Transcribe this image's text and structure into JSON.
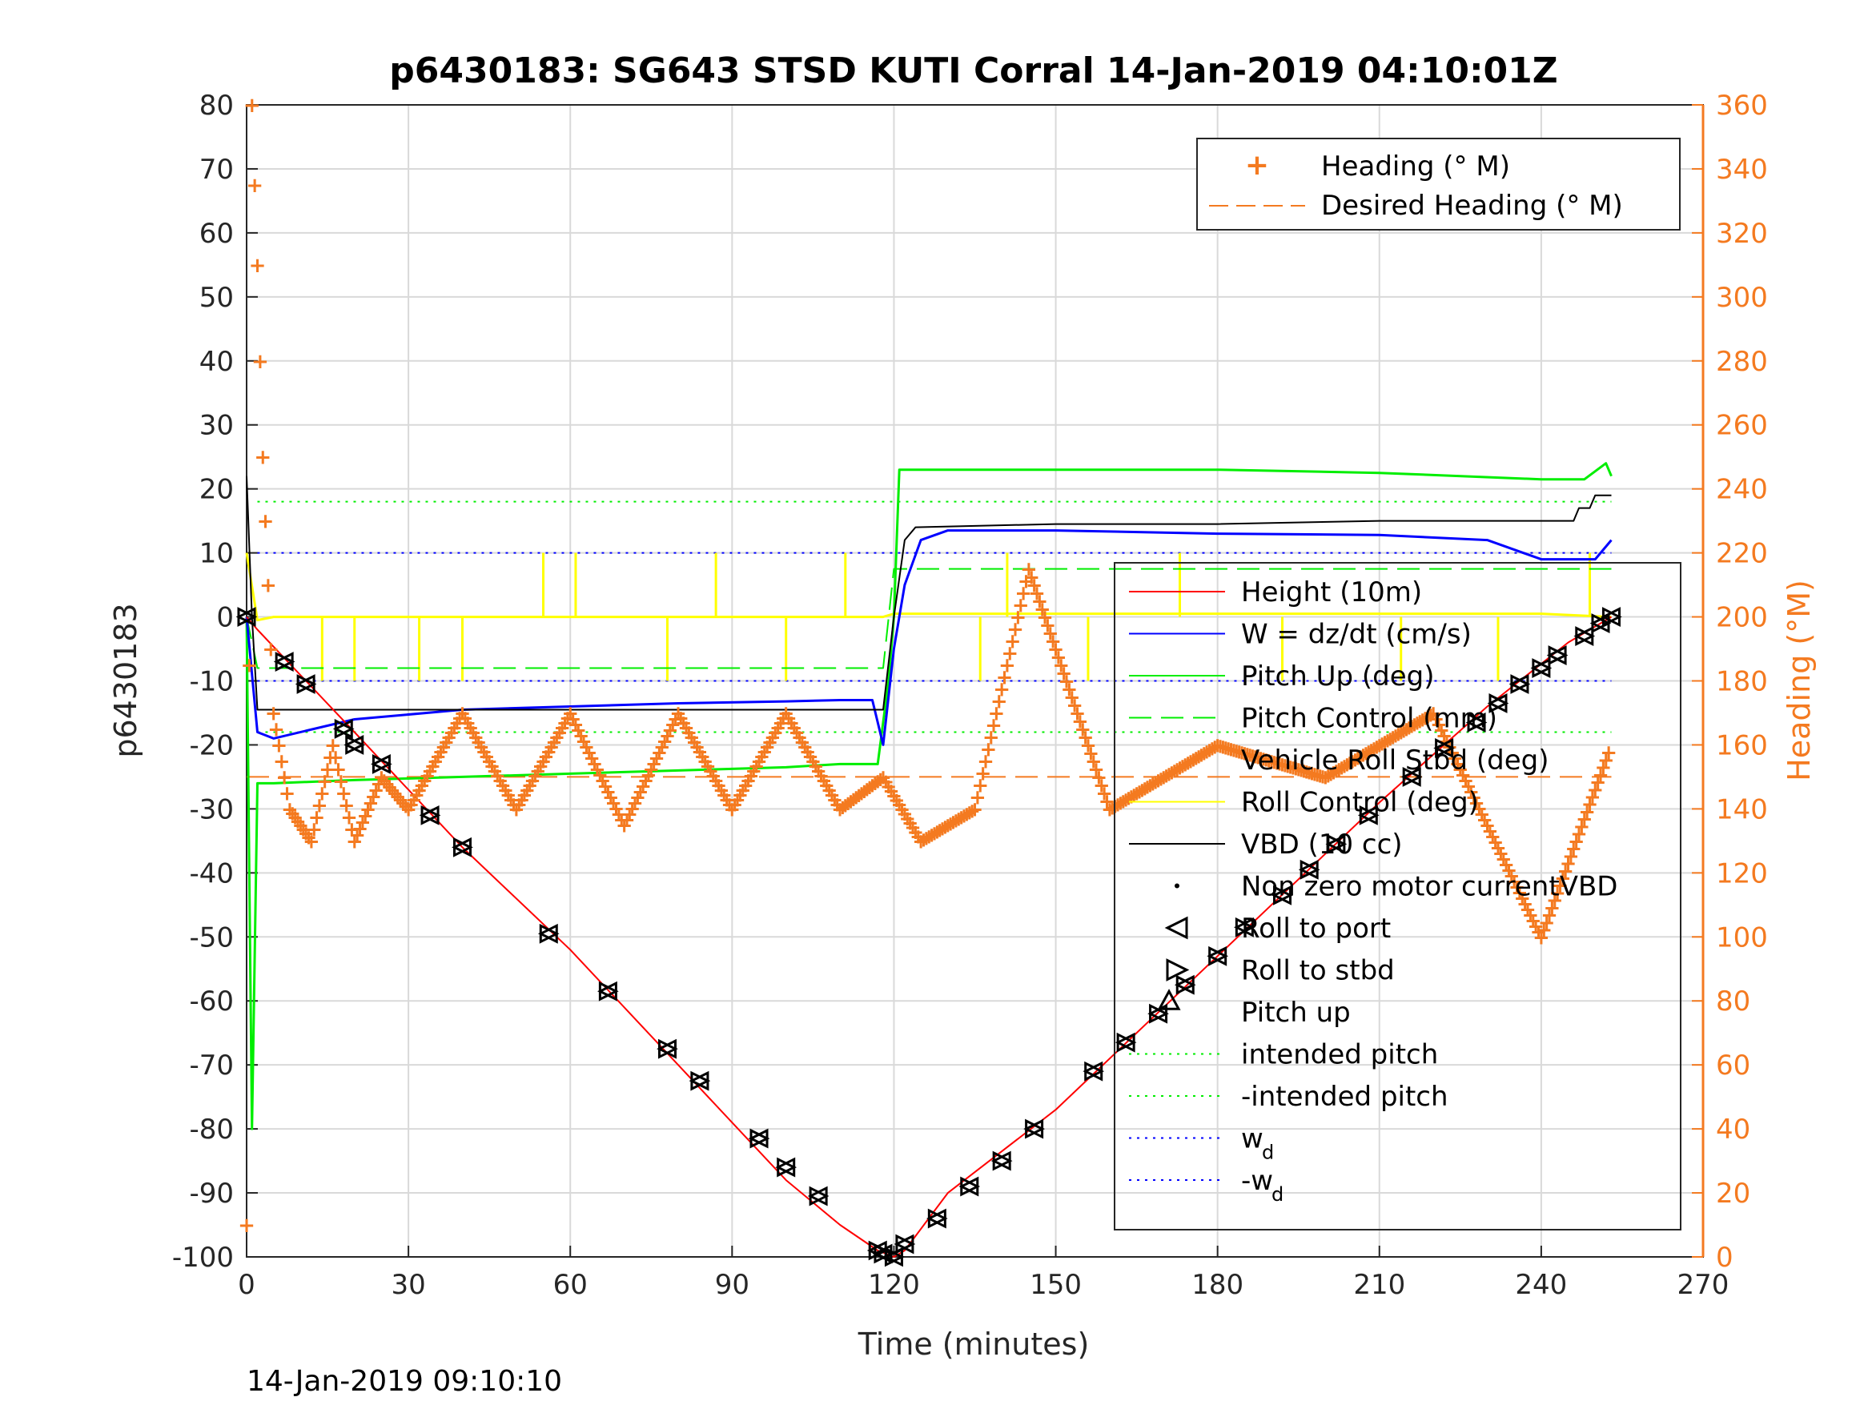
{
  "chart_data": {
    "type": "line",
    "title": "p6430183: SG643 STSD KUTI Corral 14-Jan-2019 04:10:01Z",
    "xlabel": "Time (minutes)",
    "ylabel": "p6430183",
    "ylabel_right": "Heading (°M)",
    "xlim": [
      0,
      270
    ],
    "ylim": [
      -100,
      80
    ],
    "ylim_right": [
      0,
      360
    ],
    "x_ticks": [
      "0",
      "30",
      "60",
      "90",
      "120",
      "150",
      "180",
      "210",
      "240",
      "270"
    ],
    "y_ticks": [
      "-100",
      "-90",
      "-80",
      "-70",
      "-60",
      "-50",
      "-40",
      "-30",
      "-20",
      "-10",
      "0",
      "10",
      "20",
      "30",
      "40",
      "50",
      "60",
      "70",
      "80"
    ],
    "y_ticks_right": [
      "0",
      "20",
      "40",
      "60",
      "80",
      "100",
      "120",
      "140",
      "160",
      "180",
      "200",
      "220",
      "240",
      "260",
      "280",
      "300",
      "320",
      "340",
      "360"
    ],
    "grid": true,
    "footer": "14-Jan-2019 09:10:10",
    "colors": {
      "height": "#ff0000",
      "w": "#0000ff",
      "pitch": "#00ee00",
      "roll": "#ffff00",
      "vbd": "#000000",
      "heading": "#f47a20",
      "grid": "#d9d9d9"
    },
    "legend_right_axis": {
      "position": "top-right",
      "entries": [
        "Heading (° M)",
        "Desired Heading (° M)"
      ]
    },
    "legend_left_axis": {
      "position": "right",
      "entries": [
        "Height (10m)",
        "W = dz/dt (cm/s)",
        "Pitch Up (deg)",
        "Pitch Control (mm)",
        "Vehicle Roll Stbd (deg)",
        "Roll Control (deg)",
        "VBD (10 cc)",
        "Non zero motor currentVBD",
        "Roll to port",
        "Roll to stbd",
        "Pitch up",
        "intended pitch",
        "-intended pitch",
        "w",
        "-w"
      ],
      "w_subscript": "d"
    },
    "series": [
      {
        "name": "Height (10m)",
        "x": [
          0,
          2,
          20,
          40,
          60,
          80,
          100,
          110,
          117,
          120,
          122,
          130,
          150,
          170,
          190,
          210,
          230,
          245,
          253
        ],
        "y": [
          0,
          -2,
          -18,
          -36,
          -52,
          -70,
          -88,
          -95,
          -99,
          -100,
          -99,
          -90,
          -77,
          -61,
          -45,
          -29,
          -14,
          -4,
          0
        ]
      },
      {
        "name": "W = dz/dt (cm/s)",
        "x": [
          0,
          2,
          5,
          20,
          40,
          60,
          80,
          100,
          110,
          116,
          118,
          120,
          122,
          125,
          130,
          150,
          180,
          210,
          230,
          240,
          250,
          253
        ],
        "y": [
          0,
          -18,
          -19,
          -16,
          -14.5,
          -14,
          -13.5,
          -13.2,
          -13,
          -13,
          -20,
          -5,
          5,
          12,
          13.5,
          13.5,
          13,
          12.8,
          12,
          9,
          9,
          12
        ]
      },
      {
        "name": "Pitch Up (deg)",
        "x": [
          0,
          1,
          2,
          5,
          20,
          40,
          60,
          80,
          100,
          110,
          117,
          119,
          120,
          121,
          130,
          150,
          180,
          210,
          240,
          248,
          252,
          253
        ],
        "y": [
          0,
          -80,
          -26,
          -26,
          -25.5,
          -25,
          -24.5,
          -24,
          -23.5,
          -23,
          -23,
          -10,
          0,
          23,
          23,
          23,
          23,
          22.5,
          21.5,
          21.5,
          24,
          22
        ]
      },
      {
        "name": "Pitch Control (mm)",
        "x": [
          0,
          2,
          118,
          120,
          253
        ],
        "y": [
          0,
          -8,
          -8,
          7.5,
          7.5
        ]
      },
      {
        "name": "Roll Control (deg)",
        "x": [
          0,
          2,
          5,
          20,
          40,
          60,
          80,
          100,
          118,
          120,
          140,
          160,
          180,
          200,
          220,
          240,
          253
        ],
        "y": [
          10,
          -0.5,
          0,
          0,
          0,
          0,
          0,
          0,
          0,
          0.5,
          0.5,
          0.5,
          0.5,
          0.5,
          0.5,
          0.5,
          0
        ]
      },
      {
        "name": "VBD (10 cc)",
        "x": [
          0,
          1,
          2,
          118,
          120,
          122,
          124,
          150,
          180,
          210,
          246,
          247,
          249,
          250,
          253
        ],
        "y": [
          22,
          0,
          -14.5,
          -14.5,
          0,
          12,
          14,
          14.5,
          14.5,
          15,
          15,
          17,
          17,
          19,
          19
        ]
      },
      {
        "name": "Desired Heading (° M)",
        "x": [
          0,
          253
        ],
        "y": [
          150,
          150
        ]
      },
      {
        "name": "Heading (° M)",
        "x": [
          0,
          1,
          2,
          3,
          5,
          8,
          12,
          16,
          20,
          25,
          30,
          40,
          50,
          60,
          70,
          80,
          90,
          100,
          110,
          118,
          125,
          135,
          145,
          160,
          180,
          200,
          220,
          240,
          253
        ],
        "y": [
          10,
          360,
          310,
          250,
          170,
          140,
          130,
          160,
          130,
          150,
          140,
          170,
          140,
          170,
          135,
          170,
          140,
          170,
          140,
          150,
          130,
          140,
          215,
          140,
          160,
          150,
          170,
          100,
          160
        ]
      }
    ],
    "intended_pitch": 18,
    "w_d": 10,
    "roll_markers_left": [
      [
        0,
        0
      ],
      [
        7,
        -7
      ],
      [
        11,
        -10.5
      ],
      [
        18,
        -17.5
      ],
      [
        20,
        -20
      ],
      [
        25,
        -23
      ],
      [
        34,
        -31
      ],
      [
        40,
        -36
      ],
      [
        56,
        -49.5
      ],
      [
        67,
        -58.5
      ],
      [
        78,
        -67.5
      ],
      [
        84,
        -72.5
      ],
      [
        95,
        -81.5
      ],
      [
        100,
        -86
      ],
      [
        106,
        -90.5
      ],
      [
        117,
        -99
      ],
      [
        118,
        -99.5
      ],
      [
        120,
        -100
      ],
      [
        122,
        -98
      ],
      [
        128,
        -94
      ],
      [
        134,
        -89
      ],
      [
        140,
        -85
      ],
      [
        146,
        -80
      ],
      [
        157,
        -71
      ],
      [
        163,
        -66.5
      ],
      [
        169,
        -62
      ],
      [
        174,
        -57.5
      ],
      [
        180,
        -53
      ],
      [
        185,
        -48.5
      ],
      [
        192,
        -43.5
      ],
      [
        197,
        -39.5
      ],
      [
        202,
        -35.5
      ],
      [
        208,
        -31
      ],
      [
        216,
        -25
      ],
      [
        222,
        -20.5
      ],
      [
        228,
        -16.5
      ],
      [
        232,
        -13.5
      ],
      [
        236,
        -10.5
      ],
      [
        240,
        -8
      ],
      [
        243,
        -6
      ],
      [
        248,
        -3
      ],
      [
        251,
        -1
      ],
      [
        253,
        0
      ]
    ],
    "pitch_up_markers": [
      [
        171,
        -60
      ]
    ]
  }
}
